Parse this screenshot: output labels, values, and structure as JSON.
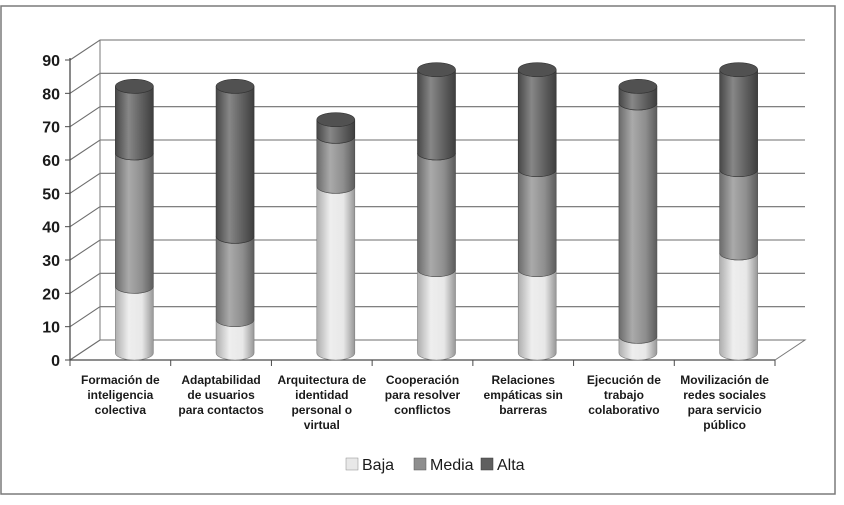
{
  "chart_data": {
    "type": "bar",
    "stacked": true,
    "style": "3d-cylinder",
    "title": "",
    "xlabel": "",
    "ylabel": "",
    "ylim": [
      0,
      90
    ],
    "yticks": [
      0,
      10,
      20,
      30,
      40,
      50,
      60,
      70,
      80,
      90
    ],
    "grid": true,
    "legend_position": "bottom",
    "categories": [
      "Formación de inteligencia colectiva",
      "Adaptabilidad de usuarios para contactos",
      "Arquitectura de identidad personal o virtual",
      "Cooperación para resolver conflictos",
      "Relaciones empáticas sin barreras",
      "Ejecución de trabajo colaborativo",
      "Movilización de redes sociales para servicio público"
    ],
    "category_lines": [
      [
        "Formación de",
        "inteligencia",
        "colectiva"
      ],
      [
        "Adaptabilidad",
        "de usuarios",
        "para contactos"
      ],
      [
        "Arquitectura de",
        "identidad",
        "personal o",
        "virtual"
      ],
      [
        "Cooperación",
        "para resolver",
        "conflictos"
      ],
      [
        "Relaciones",
        "empáticas sin",
        "barreras"
      ],
      [
        "Ejecución de",
        "trabajo",
        "colaborativo"
      ],
      [
        "Movilización de",
        "redes sociales",
        "para servicio",
        "público"
      ]
    ],
    "series": [
      {
        "name": "Baja",
        "color": "#e8e8e8",
        "values": [
          20,
          10,
          50,
          25,
          25,
          5,
          30
        ]
      },
      {
        "name": "Media",
        "color": "#8e8e8e",
        "values": [
          40,
          25,
          15,
          35,
          30,
          70,
          25
        ]
      },
      {
        "name": "Alta",
        "color": "#5f5f5f",
        "values": [
          20,
          45,
          5,
          25,
          30,
          5,
          30
        ]
      }
    ]
  }
}
